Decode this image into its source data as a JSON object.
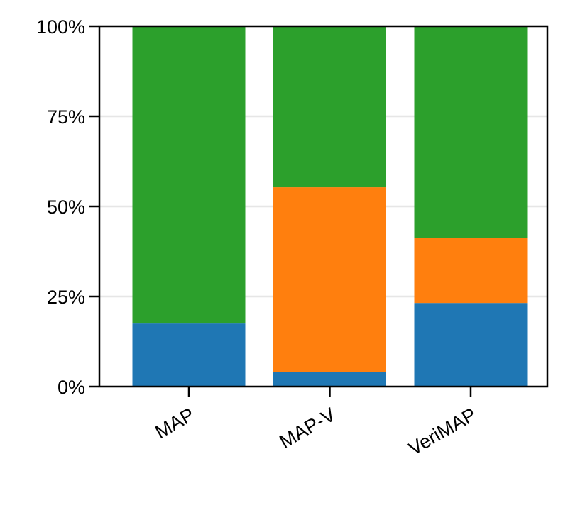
{
  "chart_data": {
    "type": "stacked-bar",
    "categories": [
      "MAP",
      "MAP-V",
      "VeriMAP"
    ],
    "series": [
      {
        "color": "#1f77b4",
        "values": [
          17.5,
          4,
          23.2
        ]
      },
      {
        "color": "#ff7f0e",
        "values": [
          0,
          51.3,
          18.1
        ]
      },
      {
        "color": "#2ca02c",
        "values": [
          82.5,
          44.7,
          58.7
        ]
      }
    ],
    "ylim": [
      0,
      100
    ],
    "yticks": [
      {
        "value": 0,
        "label": "0%"
      },
      {
        "value": 25,
        "label": "25%"
      },
      {
        "value": 50,
        "label": "50%"
      },
      {
        "value": 75,
        "label": "75%"
      },
      {
        "value": 100,
        "label": "100%"
      }
    ],
    "grid": true
  }
}
